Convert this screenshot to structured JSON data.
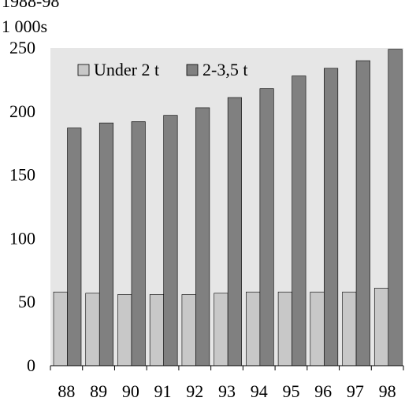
{
  "chart_data": {
    "type": "bar",
    "title": "1988-98",
    "unit_label": "1 000s",
    "categories": [
      "88",
      "89",
      "90",
      "91",
      "92",
      "93",
      "94",
      "95",
      "96",
      "97",
      "98"
    ],
    "series": [
      {
        "name": "Under 2 t",
        "color": "#c8c8c8",
        "values": [
          58,
          57,
          56,
          56,
          56,
          57,
          58,
          58,
          58,
          58,
          61
        ]
      },
      {
        "name": "2-3,5 t",
        "color": "#808080",
        "values": [
          187,
          191,
          192,
          197,
          203,
          211,
          218,
          228,
          234,
          240,
          249
        ]
      }
    ],
    "ylim": [
      0,
      250
    ],
    "yticks": [
      "0",
      "50",
      "100",
      "150",
      "200",
      "250"
    ],
    "grid": false,
    "plot_background": "#e6e6e6",
    "legend_position": "top-left",
    "xlabel": "",
    "ylabel": ""
  }
}
